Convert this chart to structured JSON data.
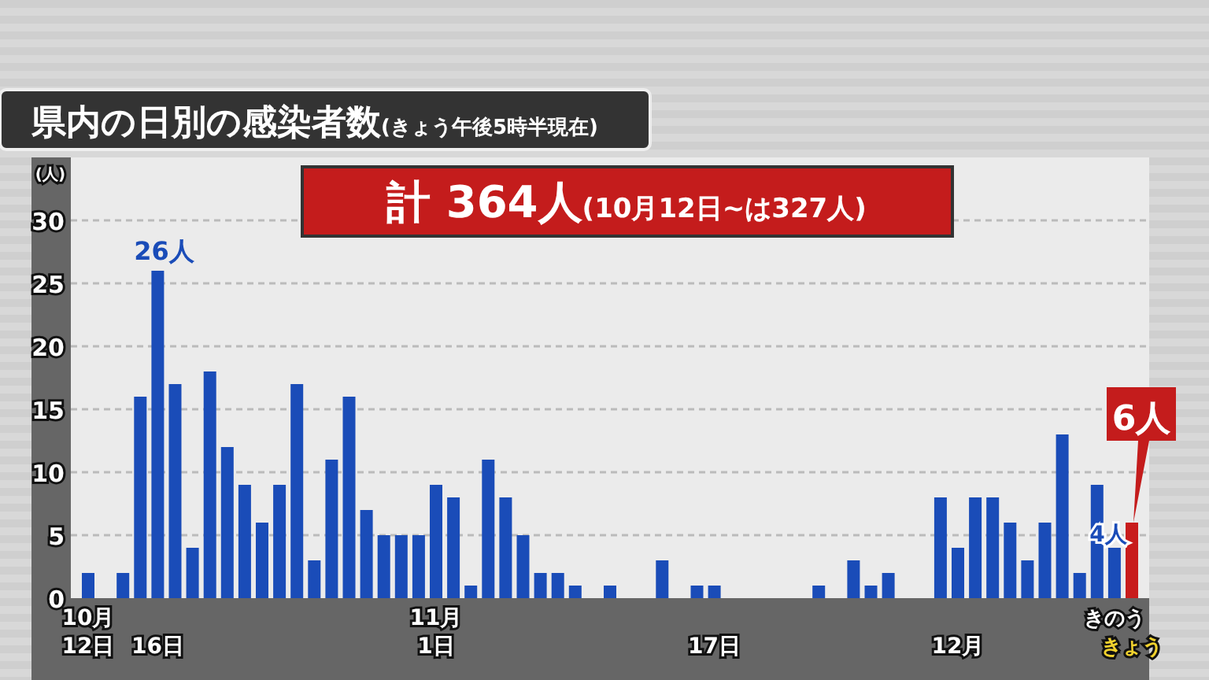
{
  "chart_data": {
    "type": "bar",
    "title": "県内の日別の感染者数",
    "subtitle": "(きょう午後5時半現在)",
    "ylabel": "(人)",
    "categories": [
      "10月\n12日",
      null,
      null,
      null,
      "16日",
      null,
      null,
      null,
      null,
      null,
      null,
      null,
      null,
      null,
      null,
      null,
      null,
      null,
      null,
      null,
      "11月\n1日",
      null,
      null,
      null,
      null,
      null,
      null,
      null,
      null,
      null,
      null,
      null,
      null,
      null,
      null,
      null,
      "17日",
      null,
      null,
      null,
      null,
      null,
      null,
      null,
      null,
      null,
      null,
      null,
      null,
      null,
      "12月",
      null,
      null,
      null,
      null,
      null,
      null,
      null,
      null,
      "きのう",
      "きょう"
    ],
    "values": [
      2,
      0,
      2,
      16,
      26,
      17,
      4,
      18,
      12,
      9,
      6,
      9,
      17,
      3,
      11,
      16,
      7,
      5,
      5,
      5,
      9,
      8,
      1,
      11,
      8,
      5,
      2,
      2,
      1,
      0,
      1,
      0,
      0,
      3,
      0,
      1,
      1,
      0,
      0,
      0,
      0,
      0,
      1,
      0,
      3,
      1,
      2,
      0,
      0,
      8,
      4,
      8,
      8,
      6,
      3,
      6,
      13,
      2,
      9,
      4,
      6
    ],
    "colors": [
      "#1a4cb8",
      "#1a4cb8",
      "#1a4cb8",
      "#1a4cb8",
      "#1a4cb8",
      "#1a4cb8",
      "#1a4cb8",
      "#1a4cb8",
      "#1a4cb8",
      "#1a4cb8",
      "#1a4cb8",
      "#1a4cb8",
      "#1a4cb8",
      "#1a4cb8",
      "#1a4cb8",
      "#1a4cb8",
      "#1a4cb8",
      "#1a4cb8",
      "#1a4cb8",
      "#1a4cb8",
      "#1a4cb8",
      "#1a4cb8",
      "#1a4cb8",
      "#1a4cb8",
      "#1a4cb8",
      "#1a4cb8",
      "#1a4cb8",
      "#1a4cb8",
      "#1a4cb8",
      "#1a4cb8",
      "#1a4cb8",
      "#1a4cb8",
      "#1a4cb8",
      "#1a4cb8",
      "#1a4cb8",
      "#1a4cb8",
      "#1a4cb8",
      "#1a4cb8",
      "#1a4cb8",
      "#1a4cb8",
      "#1a4cb8",
      "#1a4cb8",
      "#1a4cb8",
      "#1a4cb8",
      "#1a4cb8",
      "#1a4cb8",
      "#1a4cb8",
      "#1a4cb8",
      "#1a4cb8",
      "#1a4cb8",
      "#1a4cb8",
      "#1a4cb8",
      "#1a4cb8",
      "#1a4cb8",
      "#1a4cb8",
      "#1a4cb8",
      "#1a4cb8",
      "#1a4cb8",
      "#1a4cb8",
      "#1a4cb8",
      "#c81c1c"
    ],
    "ylim": [
      0,
      35
    ],
    "yticks": [
      0,
      5,
      10,
      15,
      20,
      25,
      30
    ],
    "grid": "y",
    "line_style": "dashed",
    "annotations": [
      "計 364人(10月12日~は327人)",
      {
        "text": "26人",
        "x": "16日",
        "y": 26
      },
      {
        "text": "4人",
        "x": "きのう",
        "y": 4
      },
      {
        "text": "6人",
        "x": "きょう",
        "y": 6
      }
    ]
  }
}
